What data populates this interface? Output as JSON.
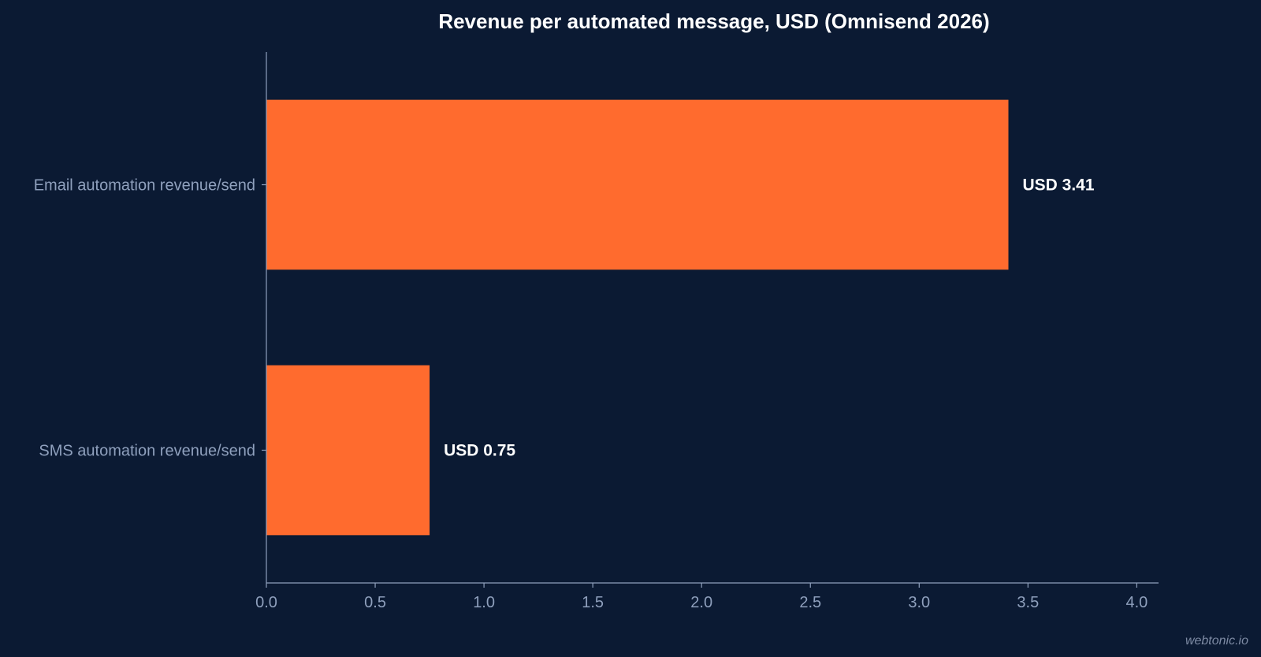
{
  "chart_data": {
    "type": "bar",
    "orientation": "horizontal",
    "title": "Revenue per automated message, USD (Omnisend 2026)",
    "xlabel": "",
    "ylabel": "",
    "categories": [
      "Email automation revenue/send",
      "SMS automation revenue/send"
    ],
    "values": [
      3.41,
      0.75
    ],
    "data_labels": [
      "USD 3.41",
      "USD 0.75"
    ],
    "xlim": [
      0,
      4.1
    ],
    "xticks": [
      0.0,
      0.5,
      1.0,
      1.5,
      2.0,
      2.5,
      3.0,
      3.5,
      4.0
    ],
    "xtick_labels": [
      "0.0",
      "0.5",
      "1.0",
      "1.5",
      "2.0",
      "2.5",
      "3.0",
      "3.5",
      "4.0"
    ],
    "grid": false,
    "legend": "none"
  },
  "colors": {
    "background": "#0b1a33",
    "bar": "#ff6b2e",
    "axis": "#8fa0bd",
    "text": "#ffffff"
  },
  "watermark": "webtonic.io"
}
